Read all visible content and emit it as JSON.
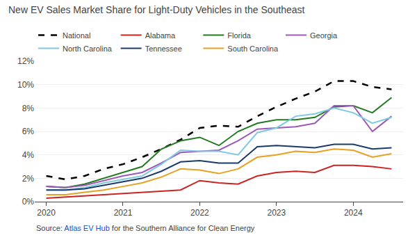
{
  "chart_data": {
    "type": "line",
    "title": "New EV Sales Market Share for Light-Duty Vehicles in the Southeast",
    "x": [
      2020.0,
      2020.25,
      2020.5,
      2020.75,
      2021.0,
      2021.25,
      2021.5,
      2021.75,
      2022.0,
      2022.25,
      2022.5,
      2022.75,
      2023.0,
      2023.25,
      2023.5,
      2023.75,
      2024.0,
      2024.25,
      2024.5
    ],
    "series": [
      {
        "name": "National",
        "color": "#000000",
        "line_style": "dashed",
        "values": [
          0.022,
          0.019,
          0.022,
          0.028,
          0.032,
          0.038,
          0.045,
          0.053,
          0.063,
          0.065,
          0.064,
          0.073,
          0.081,
          0.088,
          0.094,
          0.103,
          0.103,
          0.098,
          0.096
        ]
      },
      {
        "name": "Alabama",
        "color": "#cc2222",
        "line_style": "solid",
        "values": [
          0.003,
          0.004,
          0.005,
          0.006,
          0.007,
          0.008,
          0.009,
          0.01,
          0.018,
          0.016,
          0.015,
          0.022,
          0.025,
          0.026,
          0.025,
          0.031,
          0.031,
          0.03,
          0.028
        ]
      },
      {
        "name": "Florida",
        "color": "#217a21",
        "line_style": "solid",
        "values": [
          0.013,
          0.012,
          0.015,
          0.02,
          0.025,
          0.03,
          0.045,
          0.052,
          0.055,
          0.048,
          0.06,
          0.067,
          0.07,
          0.07,
          0.072,
          0.081,
          0.082,
          0.076,
          0.089
        ]
      },
      {
        "name": "Georgia",
        "color": "#9b59b6",
        "line_style": "solid",
        "values": [
          0.013,
          0.012,
          0.014,
          0.018,
          0.022,
          0.025,
          0.033,
          0.042,
          0.043,
          0.044,
          0.052,
          0.062,
          0.063,
          0.064,
          0.067,
          0.082,
          0.082,
          0.06,
          0.073
        ]
      },
      {
        "name": "North Carolina",
        "color": "#7ec8e3",
        "line_style": "solid",
        "values": [
          0.01,
          0.01,
          0.012,
          0.016,
          0.019,
          0.022,
          0.032,
          0.044,
          0.043,
          0.043,
          0.04,
          0.059,
          0.063,
          0.073,
          0.075,
          0.08,
          0.076,
          0.067,
          0.072
        ]
      },
      {
        "name": "Tennessee",
        "color": "#1a3a6b",
        "line_style": "solid",
        "values": [
          0.01,
          0.01,
          0.011,
          0.014,
          0.017,
          0.02,
          0.026,
          0.034,
          0.035,
          0.033,
          0.033,
          0.047,
          0.048,
          0.047,
          0.046,
          0.049,
          0.049,
          0.045,
          0.046
        ]
      },
      {
        "name": "South Carolina",
        "color": "#e8a020",
        "line_style": "solid",
        "values": [
          0.006,
          0.006,
          0.008,
          0.01,
          0.013,
          0.016,
          0.021,
          0.028,
          0.027,
          0.024,
          0.028,
          0.038,
          0.04,
          0.043,
          0.042,
          0.045,
          0.044,
          0.038,
          0.041
        ]
      }
    ],
    "xlim": [
      2019.85,
      2024.65
    ],
    "xticks": [
      2020,
      2021,
      2022,
      2023,
      2024
    ],
    "ylim": [
      0,
      0.12
    ],
    "yticks": [
      {
        "value": 0,
        "label": "0%"
      },
      {
        "value": 0.02,
        "label": "2%"
      },
      {
        "value": 0.04,
        "label": "4%"
      },
      {
        "value": 0.06,
        "label": "6%"
      },
      {
        "value": 0.08,
        "label": "8%"
      },
      {
        "value": 0.1,
        "label": "10%"
      },
      {
        "value": 0.12,
        "label": "12%"
      }
    ],
    "grid": "y",
    "legend": "top left",
    "annotations": [
      {
        "text": "Source: "
      },
      {
        "text": "Atlas EV Hub",
        "color": "#1155cc"
      },
      {
        "text": " for the Southern Alliance for Clean Energy"
      }
    ]
  }
}
